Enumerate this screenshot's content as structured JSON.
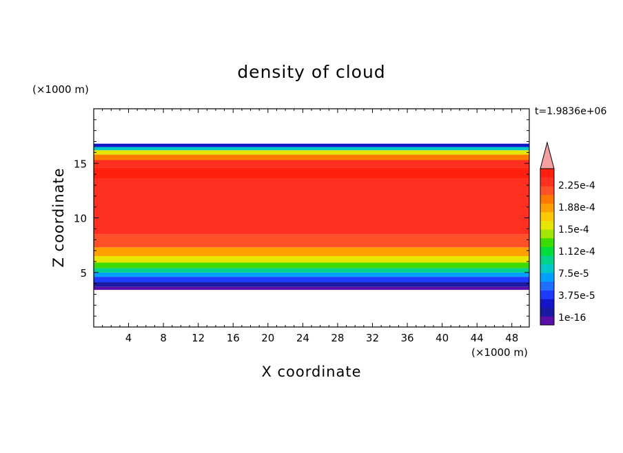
{
  "chart_data": {
    "type": "heatmap",
    "title": "density of cloud",
    "xlabel": "X coordinate",
    "ylabel": "Z coordinate",
    "x_unit": "(×1000 m)",
    "y_unit": "(×1000 m)",
    "time_label": "t=1.9836e+06",
    "xlim": [
      0,
      50
    ],
    "ylim": [
      0,
      20
    ],
    "x_ticks": [
      4,
      8,
      12,
      16,
      20,
      24,
      28,
      32,
      36,
      40,
      44,
      48
    ],
    "y_ticks": [
      5,
      10,
      15
    ],
    "grid": false,
    "colorbar": {
      "labels": [
        "2.25e-4",
        "1.88e-4",
        "1.5e-4",
        "1.12e-4",
        "7.5e-5",
        "3.75e-5",
        "1e-16"
      ],
      "colors": [
        "#5a0fa8",
        "#1a1aa0",
        "#1414c8",
        "#1e3cff",
        "#1e6eff",
        "#00a0ff",
        "#00c8c8",
        "#00d28c",
        "#00dc3c",
        "#3cdc00",
        "#a0e600",
        "#e6e600",
        "#ffc800",
        "#ffa000",
        "#ff7800",
        "#ff5028",
        "#ff3020",
        "#ff2010"
      ],
      "extend_color": "#f5a0a0"
    },
    "profile": [
      {
        "z": 3.4,
        "v": 0
      },
      {
        "z": 3.7,
        "v": 1
      },
      {
        "z": 4.1,
        "v": 3
      },
      {
        "z": 4.6,
        "v": 5
      },
      {
        "z": 5.0,
        "v": 7
      },
      {
        "z": 5.4,
        "v": 9
      },
      {
        "z": 5.9,
        "v": 11
      },
      {
        "z": 6.5,
        "v": 13
      },
      {
        "z": 7.3,
        "v": 15
      },
      {
        "z": 8.5,
        "v": 16
      },
      {
        "z": 13.6,
        "v": 17
      },
      {
        "z": 14.6,
        "v": 16
      },
      {
        "z": 15.3,
        "v": 14
      },
      {
        "z": 15.8,
        "v": 11
      },
      {
        "z": 16.2,
        "v": 6
      },
      {
        "z": 16.5,
        "v": 2
      },
      {
        "z": 16.8,
        "v": 0
      }
    ]
  }
}
